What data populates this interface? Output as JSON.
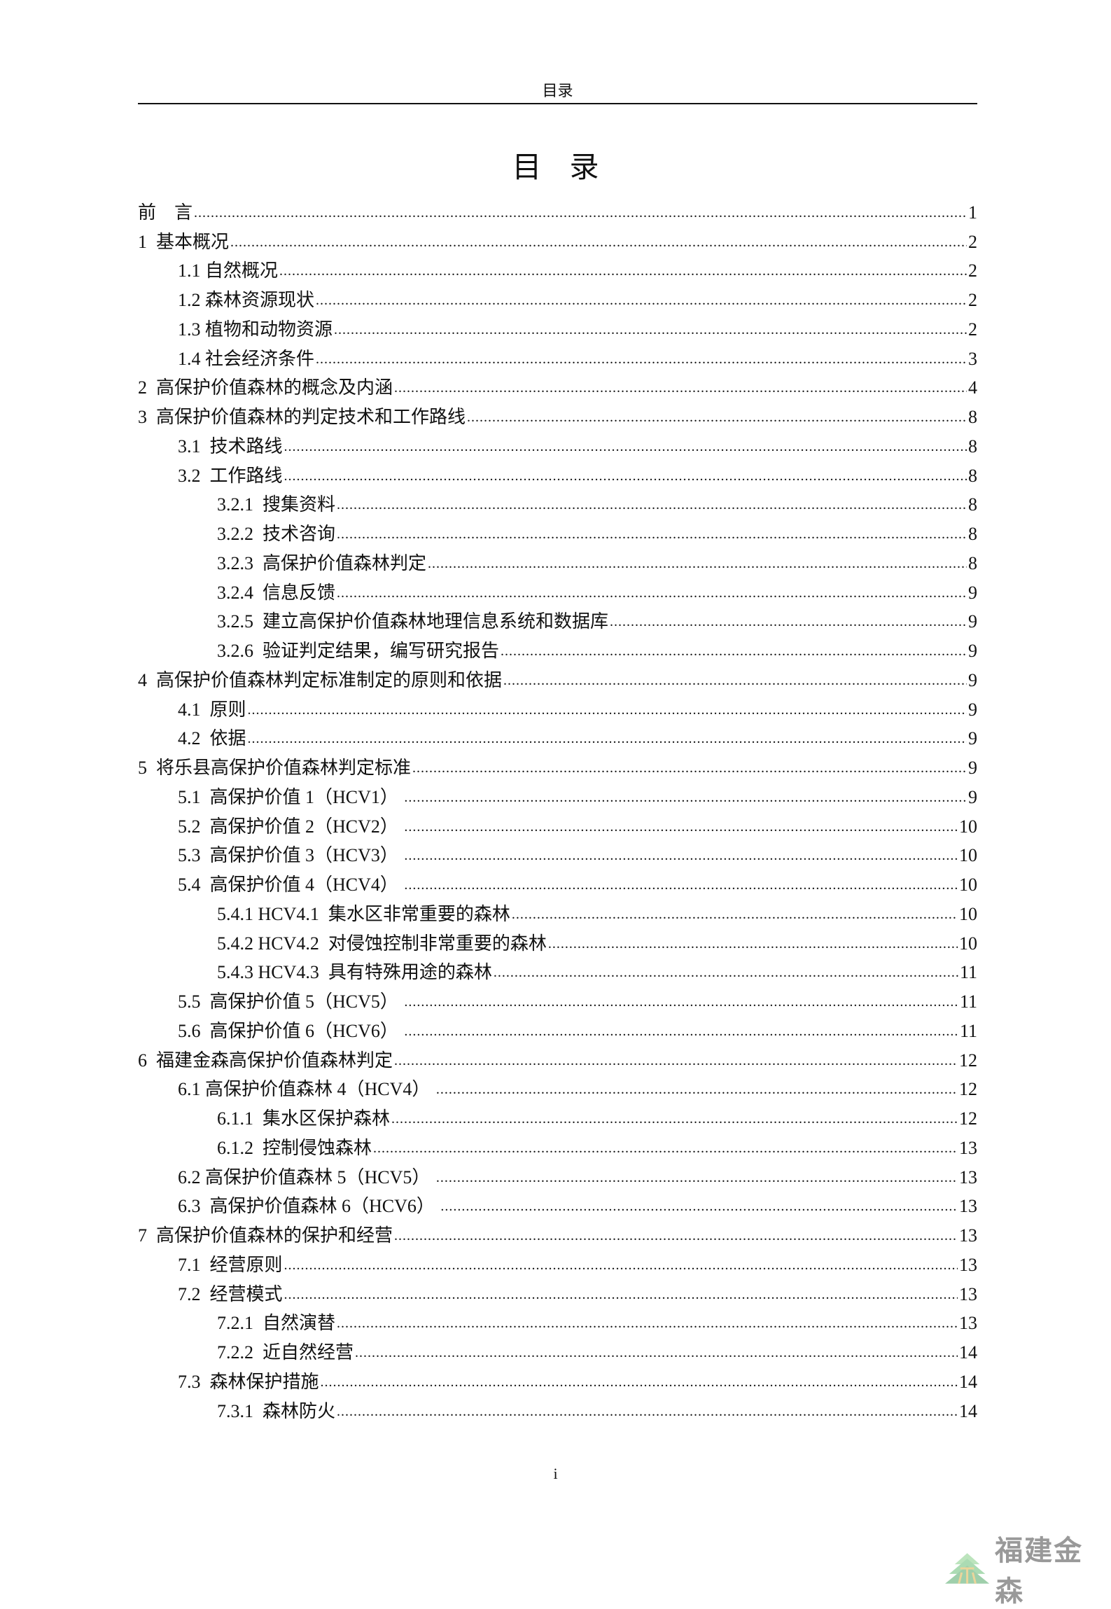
{
  "header": {
    "running_title": "目录"
  },
  "title": "目录",
  "toc": [
    {
      "label": "前　言",
      "page": "1",
      "level": 1
    },
    {
      "label": "1  基本概况",
      "page": "2",
      "level": 1
    },
    {
      "label": "1.1 自然概况",
      "page": "2",
      "level": 2
    },
    {
      "label": "1.2 森林资源现状",
      "page": "2",
      "level": 2
    },
    {
      "label": "1.3 植物和动物资源",
      "page": "2",
      "level": 2
    },
    {
      "label": "1.4 社会经济条件",
      "page": "3",
      "level": 2
    },
    {
      "label": "2  高保护价值森林的概念及内涵",
      "page": "4",
      "level": 1
    },
    {
      "label": "3  高保护价值森林的判定技术和工作路线",
      "page": "8",
      "level": 1
    },
    {
      "label": "3.1  技术路线",
      "page": "8",
      "level": 2
    },
    {
      "label": "3.2  工作路线",
      "page": "8",
      "level": 2
    },
    {
      "label": "3.2.1  搜集资料",
      "page": "8",
      "level": 3
    },
    {
      "label": "3.2.2  技术咨询",
      "page": "8",
      "level": 3
    },
    {
      "label": "3.2.3  高保护价值森林判定",
      "page": "8",
      "level": 3
    },
    {
      "label": "3.2.4  信息反馈",
      "page": "9",
      "level": 3
    },
    {
      "label": "3.2.5  建立高保护价值森林地理信息系统和数据库",
      "page": "9",
      "level": 3
    },
    {
      "label": "3.2.6  验证判定结果，编写研究报告",
      "page": "9",
      "level": 3
    },
    {
      "label": "4  高保护价值森林判定标准制定的原则和依据",
      "page": "9",
      "level": 1
    },
    {
      "label": "4.1  原则",
      "page": "9",
      "level": 2
    },
    {
      "label": "4.2  依据",
      "page": "9",
      "level": 2
    },
    {
      "label": "5  将乐县高保护价值森林判定标准",
      "page": "9",
      "level": 1
    },
    {
      "label": "5.1  高保护价值 1（HCV1） ",
      "page": "9",
      "level": 2
    },
    {
      "label": "5.2  高保护价值 2（HCV2） ",
      "page": "10",
      "level": 2
    },
    {
      "label": "5.3  高保护价值 3（HCV3） ",
      "page": "10",
      "level": 2
    },
    {
      "label": "5.4  高保护价值 4（HCV4） ",
      "page": "10",
      "level": 2
    },
    {
      "label": "5.4.1 HCV4.1  集水区非常重要的森林",
      "page": "10",
      "level": 3
    },
    {
      "label": "5.4.2 HCV4.2  对侵蚀控制非常重要的森林",
      "page": "10",
      "level": 3
    },
    {
      "label": "5.4.3 HCV4.3  具有特殊用途的森林",
      "page": "11",
      "level": 3
    },
    {
      "label": "5.5  高保护价值 5（HCV5） ",
      "page": "11",
      "level": 2
    },
    {
      "label": "5.6  高保护价值 6（HCV6） ",
      "page": "11",
      "level": 2
    },
    {
      "label": "6  福建金森高保护价值森林判定",
      "page": "12",
      "level": 1
    },
    {
      "label": "6.1 高保护价值森林 4（HCV4） ",
      "page": "12",
      "level": 2
    },
    {
      "label": "6.1.1  集水区保护森林",
      "page": "12",
      "level": 3
    },
    {
      "label": "6.1.2  控制侵蚀森林",
      "page": "13",
      "level": 3
    },
    {
      "label": "6.2 高保护价值森林 5（HCV5） ",
      "page": "13",
      "level": 2
    },
    {
      "label": "6.3  高保护价值森林 6（HCV6） ",
      "page": "13",
      "level": 2
    },
    {
      "label": "7  高保护价值森林的保护和经营",
      "page": "13",
      "level": 1
    },
    {
      "label": "7.1  经营原则",
      "page": "13",
      "level": 2
    },
    {
      "label": "7.2  经营模式",
      "page": "13",
      "level": 2
    },
    {
      "label": "7.2.1  自然演替",
      "page": "13",
      "level": 3
    },
    {
      "label": "7.2.2  近自然经营",
      "page": "14",
      "level": 3
    },
    {
      "label": "7.3  森林保护措施",
      "page": "14",
      "level": 2
    },
    {
      "label": "7.3.1  森林防火",
      "page": "14",
      "level": 3
    }
  ],
  "footer": {
    "page_number": "i"
  },
  "logo": {
    "text": "福建金森",
    "colors": {
      "tree": "#8fcf9a",
      "text": "#777777"
    }
  }
}
